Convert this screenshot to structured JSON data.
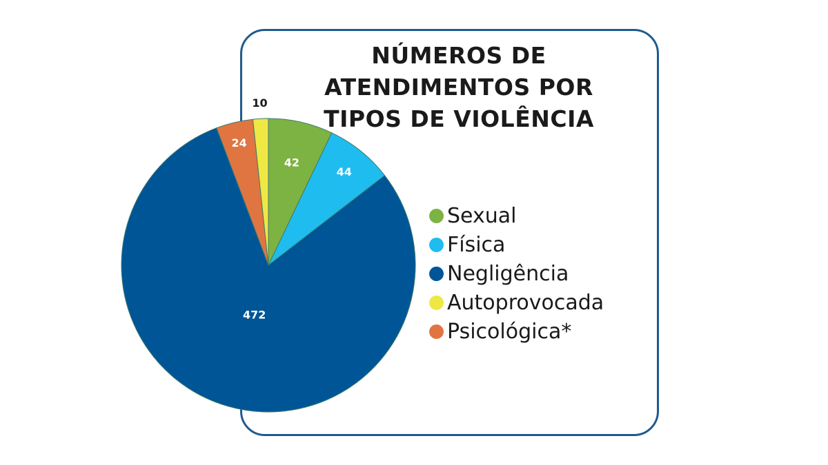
{
  "chart_data": {
    "type": "pie",
    "title": "NÚMEROS DE\nATENDIMENTOS POR\nTIPOS DE VIOLÊNCIA",
    "categories": [
      "Sexual",
      "Física",
      "Negligência",
      "Autoprovocada",
      "Psicológica*"
    ],
    "values": [
      42,
      44,
      472,
      10,
      24
    ],
    "value_labels": [
      "42",
      "44",
      "472",
      "10",
      "24"
    ],
    "colors": [
      "#7db342",
      "#1fbcef",
      "#005597",
      "#efe744",
      "#e07542"
    ],
    "label_colors": [
      "#ffffff",
      "#ffffff",
      "#ffffff",
      "#1a1a1a",
      "#ffffff"
    ],
    "slice_order_clockwise_from_top": [
      "Sexual",
      "Física",
      "Negligência",
      "Psicológica*",
      "Autoprovocada"
    ],
    "legend_position": "right"
  }
}
